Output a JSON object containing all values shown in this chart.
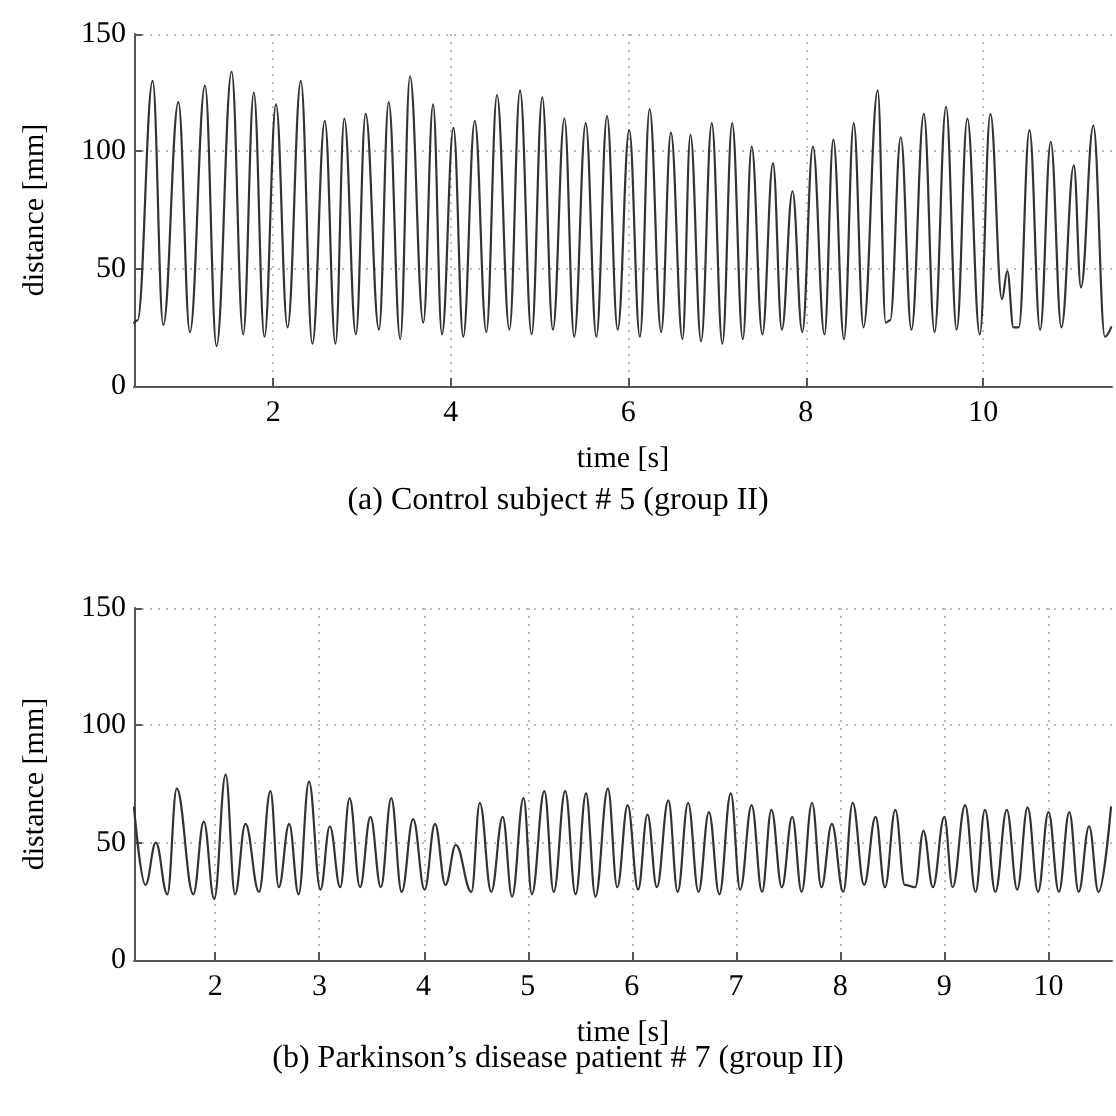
{
  "chart_data": [
    {
      "type": "line",
      "title": "(a) Control subject # 5 (group II)",
      "xlabel": "time [s]",
      "ylabel": "distance [mm]",
      "xlim": [
        0.43,
        11.45
      ],
      "ylim": [
        0,
        150
      ],
      "xticks": [
        2,
        4,
        6,
        8,
        10
      ],
      "yticks": [
        0,
        50,
        100,
        150
      ],
      "grid": true,
      "marker": "none",
      "line_style": "solid",
      "series": [
        {
          "color": "#333333",
          "x": [
            0.43,
            0.47,
            0.64,
            0.76,
            0.93,
            1.06,
            1.23,
            1.36,
            1.53,
            1.66,
            1.78,
            1.9,
            2.03,
            2.16,
            2.31,
            2.44,
            2.58,
            2.7,
            2.8,
            2.93,
            3.04,
            3.19,
            3.3,
            3.43,
            3.54,
            3.69,
            3.8,
            3.9,
            4.03,
            4.14,
            4.27,
            4.4,
            4.52,
            4.66,
            4.78,
            4.91,
            5.03,
            5.15,
            5.28,
            5.39,
            5.52,
            5.64,
            5.76,
            5.88,
            6.01,
            6.13,
            6.24,
            6.37,
            6.48,
            6.61,
            6.7,
            6.82,
            6.94,
            7.06,
            7.17,
            7.29,
            7.39,
            7.51,
            7.63,
            7.73,
            7.85,
            7.96,
            8.08,
            8.21,
            8.31,
            8.43,
            8.54,
            8.65,
            8.81,
            8.9,
            8.95,
            9.07,
            9.19,
            9.33,
            9.45,
            9.58,
            9.7,
            9.82,
            9.96,
            10.08,
            10.21,
            10.27,
            10.34,
            10.4,
            10.52,
            10.64,
            10.76,
            10.88,
            11.02,
            11.1,
            11.24,
            11.37,
            11.44
          ],
          "values": [
            27,
            28,
            130,
            26,
            121,
            23,
            128,
            17,
            134,
            22,
            125,
            21,
            120,
            25,
            130,
            18,
            113,
            18,
            114,
            22,
            116,
            24,
            121,
            20,
            132,
            27,
            120,
            22,
            110,
            21,
            113,
            23,
            124,
            24,
            126,
            22,
            123,
            24,
            114,
            21,
            112,
            21,
            115,
            24,
            109,
            21,
            118,
            23,
            108,
            20,
            107,
            19,
            112,
            18,
            112,
            20,
            102,
            22,
            95,
            24,
            83,
            23,
            102,
            22,
            105,
            20,
            112,
            25,
            126,
            27,
            28,
            106,
            24,
            116,
            23,
            119,
            24,
            114,
            22,
            116,
            37,
            49,
            25,
            25,
            109,
            24,
            104,
            25,
            94,
            42,
            111,
            21,
            25
          ]
        }
      ]
    },
    {
      "type": "line",
      "title": "(b) Parkinson’s disease patient # 7 (group II)",
      "xlabel": "time [s]",
      "ylabel": "distance [mm]",
      "xlim": [
        1.22,
        10.61
      ],
      "ylim": [
        0,
        150
      ],
      "xticks": [
        2,
        3,
        4,
        5,
        6,
        7,
        8,
        9,
        10
      ],
      "yticks": [
        0,
        50,
        100,
        150
      ],
      "grid": true,
      "marker": "none",
      "line_style": "solid",
      "series": [
        {
          "color": "#333333",
          "x": [
            1.22,
            1.33,
            1.43,
            1.54,
            1.63,
            1.79,
            1.89,
            1.99,
            2.1,
            2.19,
            2.29,
            2.42,
            2.53,
            2.61,
            2.71,
            2.8,
            2.9,
            3.01,
            3.1,
            3.2,
            3.29,
            3.39,
            3.49,
            3.59,
            3.69,
            3.79,
            3.9,
            4.01,
            4.11,
            4.21,
            4.31,
            4.46,
            4.54,
            4.65,
            4.76,
            4.85,
            4.96,
            5.04,
            5.16,
            5.25,
            5.36,
            5.46,
            5.56,
            5.65,
            5.77,
            5.86,
            5.96,
            6.06,
            6.15,
            6.24,
            6.35,
            6.44,
            6.54,
            6.64,
            6.74,
            6.84,
            6.95,
            7.04,
            7.15,
            7.25,
            7.34,
            7.44,
            7.54,
            7.63,
            7.73,
            7.82,
            7.92,
            8.03,
            8.12,
            8.23,
            8.34,
            8.43,
            8.53,
            8.62,
            8.72,
            8.8,
            8.89,
            9.0,
            9.08,
            9.2,
            9.3,
            9.39,
            9.49,
            9.6,
            9.7,
            9.8,
            9.9,
            10.0,
            10.1,
            10.2,
            10.29,
            10.39,
            10.48,
            10.6
          ],
          "values": [
            65,
            32,
            50,
            28,
            73,
            28,
            59,
            26,
            79,
            28,
            58,
            29,
            72,
            31,
            58,
            28,
            76,
            30,
            57,
            31,
            69,
            31,
            61,
            31,
            69,
            29,
            60,
            30,
            58,
            32,
            49,
            29,
            67,
            29,
            61,
            27,
            69,
            28,
            72,
            29,
            72,
            28,
            71,
            27,
            73,
            31,
            66,
            30,
            62,
            31,
            68,
            29,
            67,
            29,
            63,
            28,
            71,
            30,
            66,
            29,
            64,
            31,
            61,
            29,
            67,
            31,
            58,
            29,
            67,
            32,
            61,
            31,
            64,
            32,
            31,
            55,
            31,
            61,
            31,
            66,
            29,
            64,
            29,
            64,
            30,
            65,
            29,
            63,
            29,
            63,
            29,
            57,
            29,
            65
          ]
        }
      ]
    }
  ]
}
